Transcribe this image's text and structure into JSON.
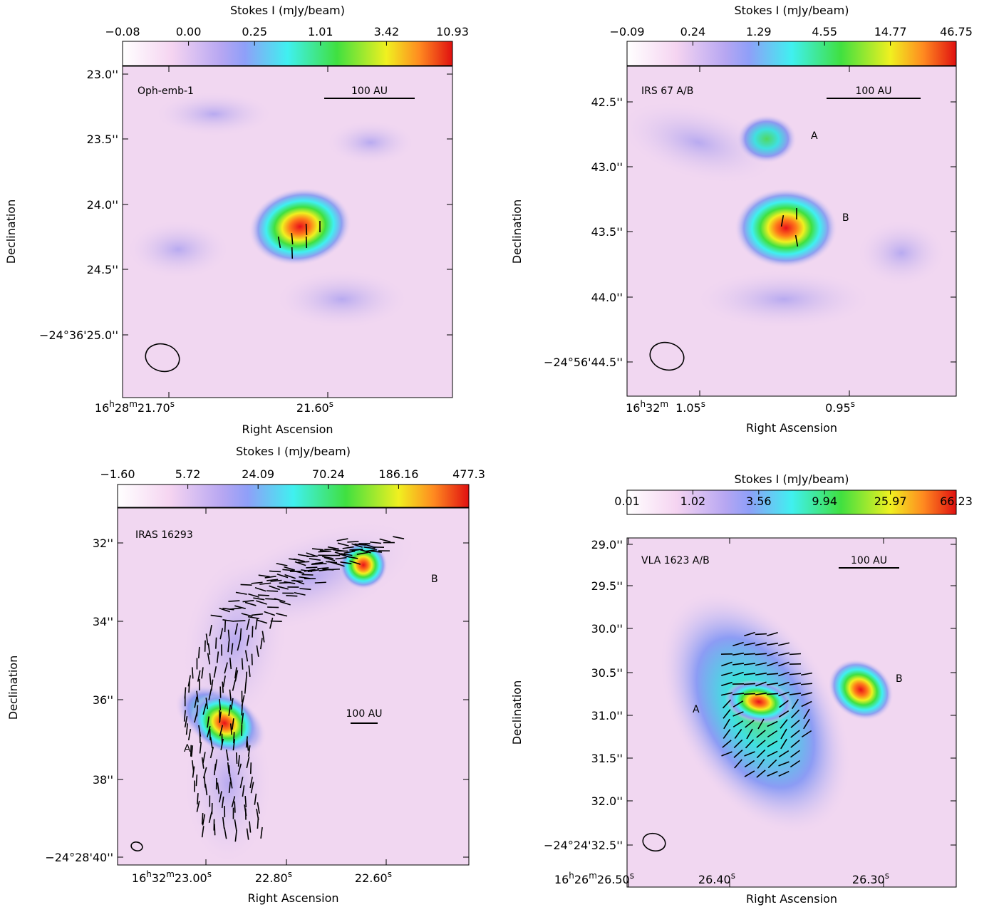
{
  "panels": [
    {
      "colorbar_label": "Stokes I (mJy/beam)",
      "colorbar_ticks": [
        "−0.08",
        "0.00",
        "0.25",
        "1.01",
        "3.42",
        "10.93"
      ],
      "name": "Oph-emb-1",
      "scale_bar": "100 AU",
      "sources": [],
      "yticks": [
        "23.0''",
        "23.5''",
        "24.0''",
        "24.5''",
        "−24°36'25.0''"
      ],
      "xticks": [
        [
          "16",
          "h",
          "28",
          "m",
          "21.70",
          "s"
        ],
        [
          "21.60",
          "s"
        ]
      ],
      "xlabel": "Right Ascension",
      "ylabel": "Declination"
    },
    {
      "colorbar_label": "Stokes I (mJy/beam)",
      "colorbar_ticks": [
        "−0.09",
        "0.24",
        "1.29",
        "4.55",
        "14.77",
        "46.75"
      ],
      "name": "IRS 67 A/B",
      "scale_bar": "100 AU",
      "sources": [
        "A",
        "B"
      ],
      "yticks": [
        "42.5''",
        "43.0''",
        "43.5''",
        "44.0''",
        "−24°56'44.5''"
      ],
      "xticks": [
        [
          "16",
          "h",
          "32",
          "m",
          "1.05",
          "s"
        ],
        [
          "0.95",
          "s"
        ]
      ],
      "xlabel": "Right Ascension",
      "ylabel": "Declination"
    },
    {
      "colorbar_label": "Stokes I (mJy/beam)",
      "colorbar_ticks": [
        "−1.60",
        "5.72",
        "24.09",
        "70.24",
        "186.16",
        "477.3"
      ],
      "name": "IRAS 16293",
      "scale_bar": "100 AU",
      "sources": [
        "A",
        "B"
      ],
      "yticks": [
        "32''",
        "34''",
        "36''",
        "38''",
        "−24°28'40''"
      ],
      "xticks": [
        [
          "16",
          "h",
          "32",
          "m",
          "23.00",
          "s"
        ],
        [
          "22.80",
          "s"
        ],
        [
          "22.60",
          "s"
        ]
      ],
      "xlabel": "Right Ascension",
      "ylabel": "Declination"
    },
    {
      "colorbar_label": "Stokes I (mJy/beam)",
      "colorbar_ticks": [
        "0.01",
        "1.02",
        "3.56",
        "9.94",
        "25.97",
        "66.23"
      ],
      "name": "VLA 1623 A/B",
      "scale_bar": "100 AU",
      "sources": [
        "A",
        "B"
      ],
      "yticks": [
        "29.0''",
        "29.5''",
        "30.0''",
        "30.5''",
        "31.0''",
        "31.5''",
        "32.0''",
        "−24°24'32.5''"
      ],
      "xticks": [
        [
          "16",
          "h",
          "26",
          "m",
          "26.50",
          "s"
        ],
        [
          "26.40",
          "s"
        ],
        [
          "26.30",
          "s"
        ]
      ],
      "xlabel": "Right Ascension",
      "ylabel": "Declination"
    }
  ]
}
